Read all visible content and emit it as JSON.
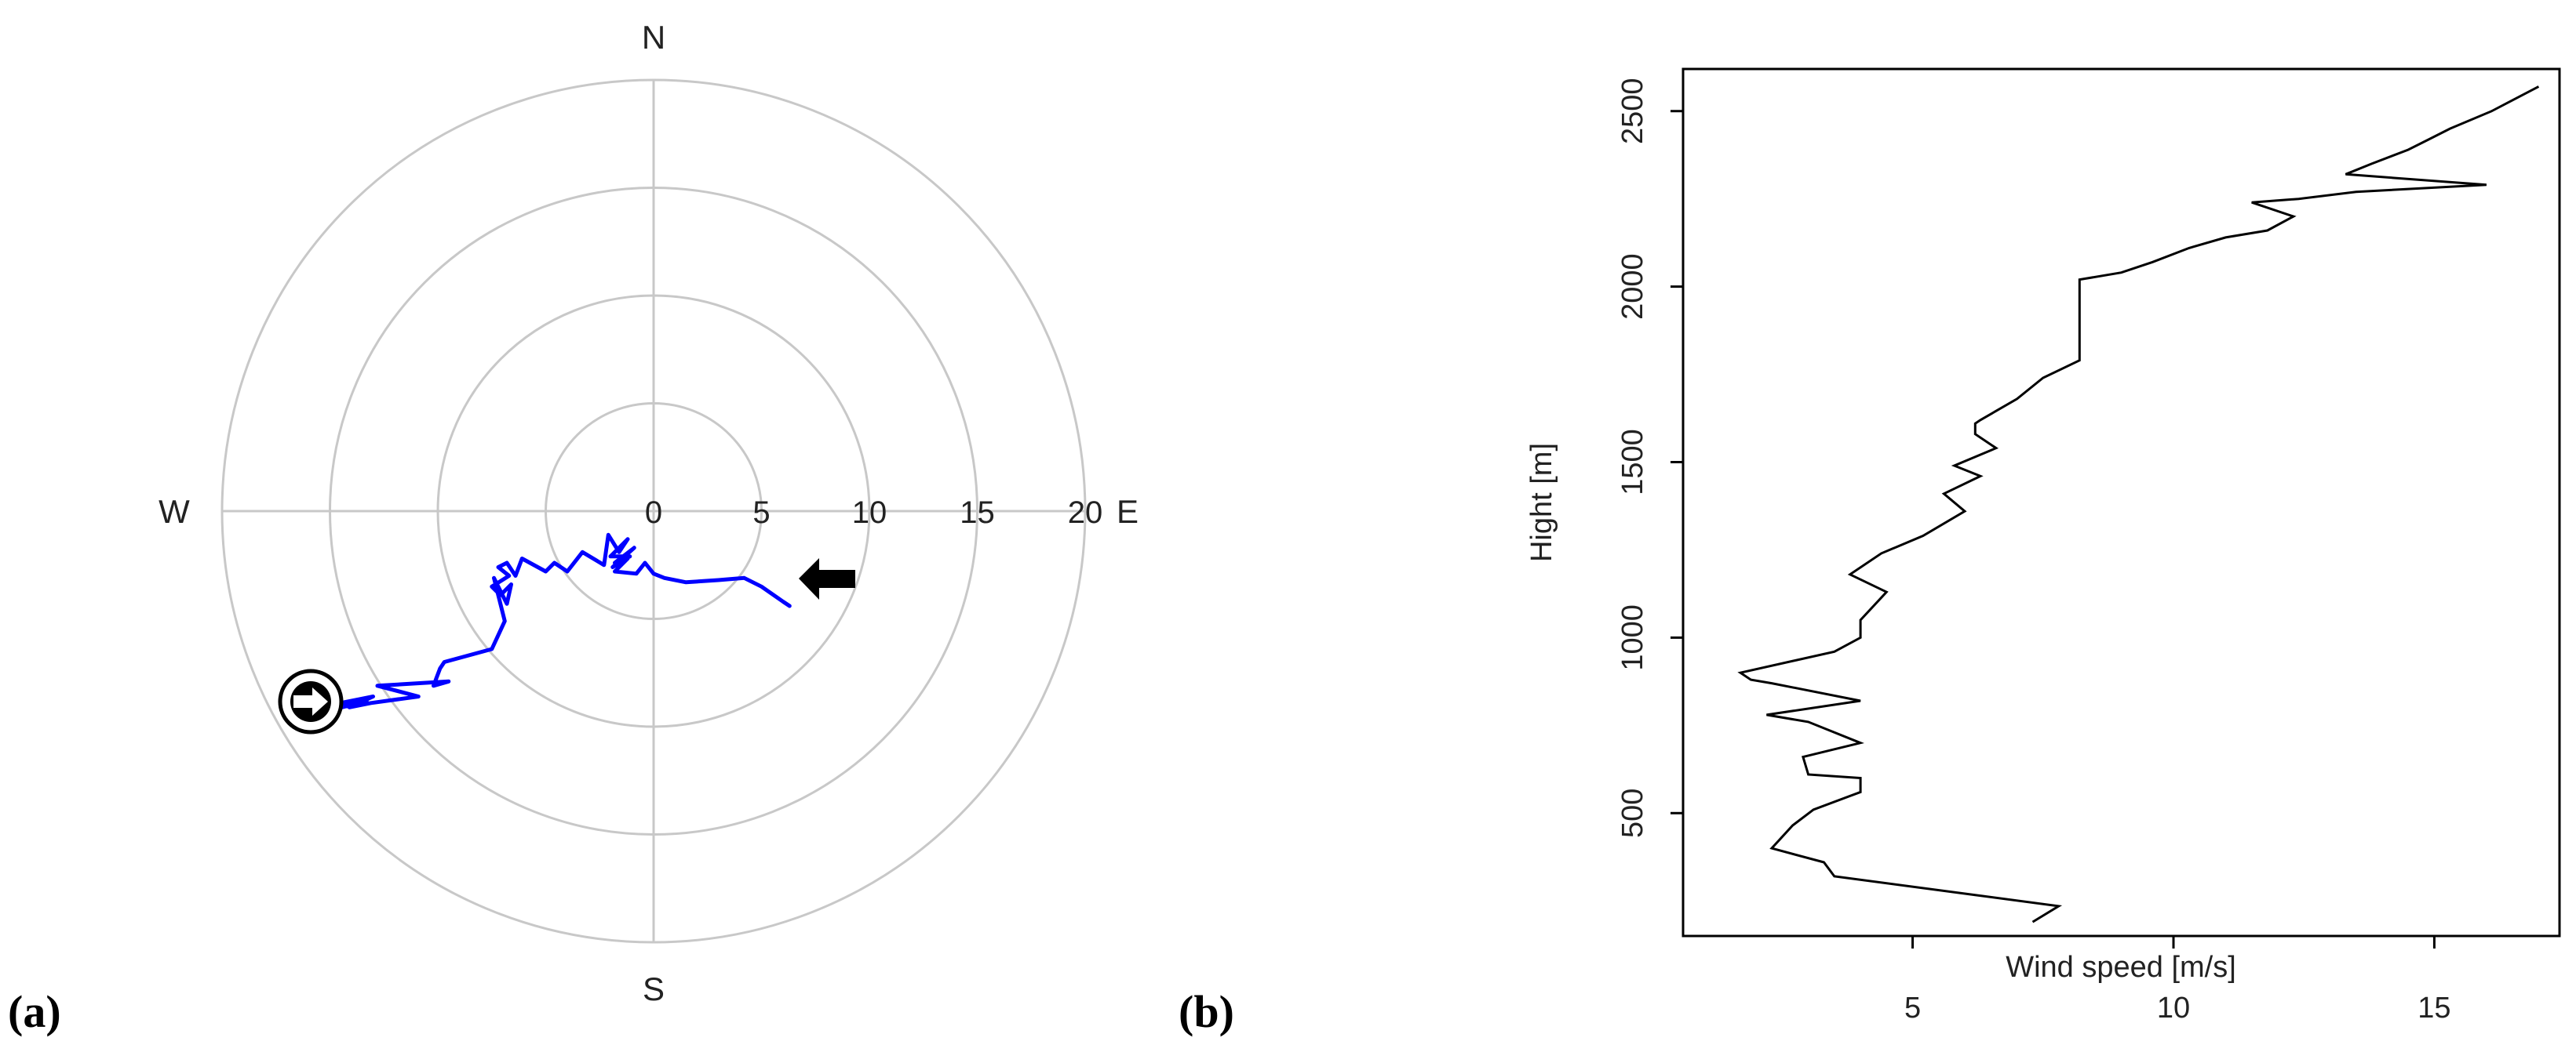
{
  "panels": {
    "a_label": "(a)",
    "b_label": "(b)"
  },
  "chart_data": [
    {
      "type": "polar-hodograph",
      "panel": "(a)",
      "compass": {
        "north": "N",
        "south": "S",
        "east": "E",
        "west": "W"
      },
      "radial_ticks": [
        0,
        5,
        10,
        15,
        20
      ],
      "radial_tick_labels": [
        "0",
        "5",
        "10",
        "15",
        "20"
      ],
      "rmax": 20,
      "grid": true,
      "series": [
        {
          "color": "#0000ff",
          "points_uv": [
            [
              6.3,
              -4.4
            ],
            [
              6.0,
              -4.2
            ],
            [
              5.0,
              -3.5
            ],
            [
              4.2,
              -3.1
            ],
            [
              3.0,
              -3.2
            ],
            [
              1.5,
              -3.3
            ],
            [
              0.5,
              -3.1
            ],
            [
              0.0,
              -2.9
            ],
            [
              -0.4,
              -2.4
            ],
            [
              -0.8,
              -2.9
            ],
            [
              -1.8,
              -2.8
            ],
            [
              -1.2,
              -2.2
            ],
            [
              -1.9,
              -2.6
            ],
            [
              -0.9,
              -1.7
            ],
            [
              -1.8,
              -2.4
            ],
            [
              -1.1,
              -2.1
            ],
            [
              -2.0,
              -2.1
            ],
            [
              -1.2,
              -1.3
            ],
            [
              -1.6,
              -1.9
            ],
            [
              -2.1,
              -1.1
            ],
            [
              -2.3,
              -2.5
            ],
            [
              -3.3,
              -1.9
            ],
            [
              -4.0,
              -2.8
            ],
            [
              -4.6,
              -2.4
            ],
            [
              -5.0,
              -2.8
            ],
            [
              -6.1,
              -2.2
            ],
            [
              -6.4,
              -3.0
            ],
            [
              -6.8,
              -2.4
            ],
            [
              -7.2,
              -2.6
            ],
            [
              -6.7,
              -3.0
            ],
            [
              -7.5,
              -3.5
            ],
            [
              -7.1,
              -3.9
            ],
            [
              -6.6,
              -3.4
            ],
            [
              -6.8,
              -4.3
            ],
            [
              -7.4,
              -3.1
            ],
            [
              -6.9,
              -5.1
            ],
            [
              -7.5,
              -6.4
            ],
            [
              -9.7,
              -7.0
            ],
            [
              -9.9,
              -7.3
            ],
            [
              -10.2,
              -8.1
            ],
            [
              -9.5,
              -7.9
            ],
            [
              -12.8,
              -8.1
            ],
            [
              -10.9,
              -8.6
            ],
            [
              -13.1,
              -8.9
            ],
            [
              -14.1,
              -9.1
            ],
            [
              -13.0,
              -8.6
            ],
            [
              -15.0,
              -9.0
            ],
            [
              -13.3,
              -8.8
            ],
            [
              -15.2,
              -9.3
            ]
          ]
        }
      ],
      "markers": [
        {
          "name": "start-arrow",
          "direction": "west",
          "at_uv": [
            8.2,
            -3.0
          ]
        },
        {
          "name": "end-arrow",
          "direction": "east",
          "at_uv": [
            -16.0,
            -9.0
          ]
        }
      ]
    },
    {
      "type": "line",
      "panel": "(b)",
      "xlabel": "Wind speed [m/s]",
      "ylabel": "Hight [m]",
      "xlim": [
        0.6,
        17.4
      ],
      "ylim": [
        150,
        2620
      ],
      "xticks": [
        5,
        10,
        15
      ],
      "yticks": [
        500,
        1000,
        1500,
        2000,
        2500
      ],
      "grid": false,
      "series": [
        {
          "color": "#000000",
          "x": [
            7.3,
            7.8,
            3.5,
            3.3,
            2.3,
            2.7,
            3.1,
            4.0,
            4.0,
            3.0,
            2.9,
            4.0,
            3.0,
            2.2,
            4.0,
            2.3,
            1.9,
            1.7,
            3.5,
            4.0,
            4.0,
            4.5,
            3.8,
            4.4,
            5.2,
            6.0,
            5.6,
            6.3,
            5.8,
            6.6,
            6.2,
            6.2,
            6.3,
            7.0,
            7.5,
            8.2,
            8.2,
            8.2,
            9.0,
            9.6,
            10.3,
            11.0,
            11.8,
            12.3,
            11.5,
            12.4,
            13.5,
            16.0,
            13.3,
            13.8,
            14.5,
            14.9,
            15.3,
            16.1,
            17.0
          ],
          "y": [
            190,
            235,
            320,
            360,
            400,
            465,
            510,
            560,
            600,
            610,
            660,
            700,
            760,
            780,
            820,
            870,
            880,
            900,
            960,
            1000,
            1050,
            1130,
            1180,
            1240,
            1290,
            1360,
            1410,
            1460,
            1490,
            1540,
            1580,
            1610,
            1620,
            1680,
            1740,
            1790,
            1850,
            2020,
            2040,
            2070,
            2110,
            2140,
            2160,
            2200,
            2240,
            2250,
            2270,
            2290,
            2320,
            2350,
            2390,
            2420,
            2450,
            2500,
            2570
          ]
        }
      ]
    }
  ]
}
